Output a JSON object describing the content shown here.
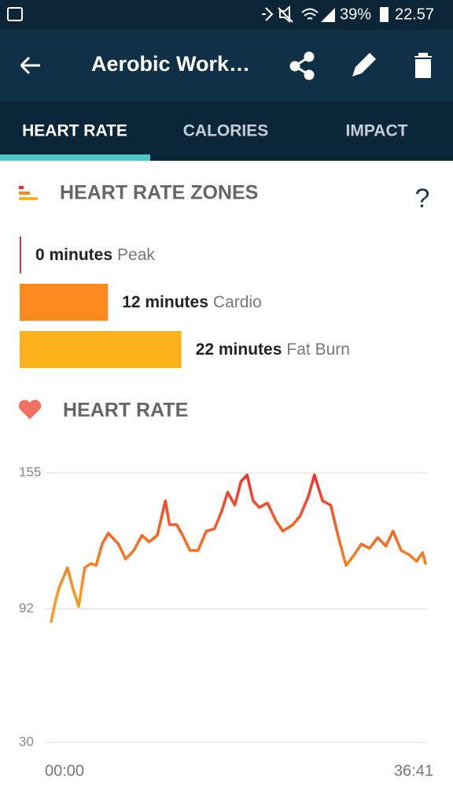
{
  "status_bar": {
    "battery": "39%",
    "time": "22.57"
  },
  "app_bar": {
    "title": "Aerobic Work…"
  },
  "tabs": [
    "HEART RATE",
    "CALORIES",
    "IMPACT"
  ],
  "zones": {
    "title": "HEART RATE ZONES",
    "help": "?",
    "items": [
      {
        "minutes": 0,
        "minutes_label": "0 minutes",
        "name": "Peak",
        "color": "#e8303a"
      },
      {
        "minutes": 12,
        "minutes_label": "12 minutes",
        "name": "Cardio",
        "color": "#fb8a1e"
      },
      {
        "minutes": 22,
        "minutes_label": "22 minutes",
        "name": "Fat Burn",
        "color": "#fdb21b"
      }
    ]
  },
  "chart_data": {
    "type": "line",
    "title": "HEART RATE",
    "x": [
      0,
      0.4,
      0.8,
      1.6,
      2.1,
      2.7,
      3.3,
      3.9,
      4.4,
      5.0,
      5.6,
      6.6,
      7.3,
      8.1,
      8.9,
      9.6,
      10.4,
      11.2,
      11.6,
      12.3,
      12.9,
      13.6,
      14.4,
      15.2,
      16.0,
      16.7,
      17.3,
      18.0,
      18.6,
      19.2,
      19.8,
      20.4,
      21.2,
      22.0,
      22.7,
      23.7,
      24.4,
      25.2,
      25.8,
      26.6,
      27.4,
      28.1,
      28.9,
      29.7,
      30.4,
      31.2,
      32.0,
      32.8,
      33.5,
      34.3,
      35.1,
      35.8,
      36.4,
      36.68
    ],
    "values": [
      86,
      95,
      102,
      111,
      102,
      93,
      111,
      113,
      112,
      122,
      127,
      122,
      115,
      119,
      126,
      123,
      126,
      142,
      131,
      131,
      126,
      119,
      119,
      128,
      129,
      137,
      146,
      140,
      151,
      154,
      142,
      139,
      141,
      133,
      128,
      131,
      135,
      144,
      154,
      142,
      140,
      126,
      112,
      117,
      122,
      120,
      125,
      121,
      128,
      119,
      117,
      114,
      118,
      113
    ],
    "colors": [
      "#fb9a1c",
      "#f42e2c"
    ],
    "xlim": [
      0,
      36.68
    ],
    "xticks": [
      {
        "value": 0,
        "label": "00:00"
      },
      {
        "value": 36.68,
        "label": "36:41"
      }
    ],
    "ylim": [
      30,
      155
    ],
    "yticks": [
      30,
      92,
      155
    ],
    "grid": true
  }
}
